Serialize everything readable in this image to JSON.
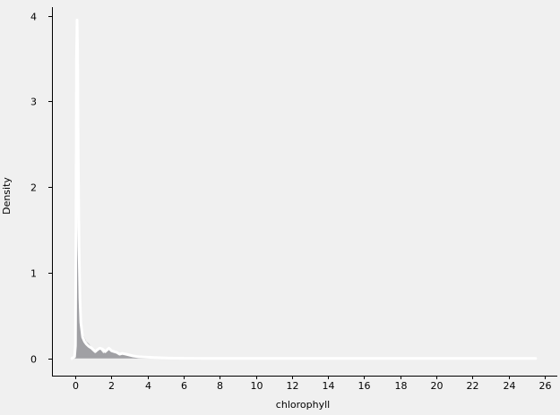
{
  "chart_data": {
    "type": "area",
    "title": "",
    "xlabel": "chlorophyll",
    "ylabel": "Density",
    "xlim": [
      -1.3,
      26.7
    ],
    "ylim": [
      -0.2,
      4.1
    ],
    "x_ticks": [
      0,
      2,
      4,
      6,
      8,
      10,
      12,
      14,
      16,
      18,
      20,
      22,
      24,
      26
    ],
    "y_ticks": [
      0,
      1,
      2,
      3,
      4
    ],
    "grid": false,
    "background": "#f0f0f0",
    "series": [
      {
        "role": "area",
        "color": "#a0a0a4",
        "x": [
          -0.1,
          0.0,
          0.05,
          0.1,
          0.13,
          0.16,
          0.2,
          0.25,
          0.3,
          0.4,
          0.5,
          0.6,
          0.75,
          0.9,
          1.0,
          1.1,
          1.25,
          1.4,
          1.55,
          1.7,
          1.85,
          1.95,
          2.1,
          2.25,
          2.4,
          2.55,
          2.7,
          2.85,
          3.0,
          3.1,
          3.2,
          3.4,
          3.7,
          4.0,
          4.5,
          5.0,
          5.3
        ],
        "y": [
          0,
          0.05,
          0.4,
          1.3,
          2.05,
          1.75,
          1.1,
          0.7,
          0.48,
          0.3,
          0.24,
          0.2,
          0.17,
          0.13,
          0.11,
          0.09,
          0.12,
          0.1,
          0.06,
          0.1,
          0.12,
          0.1,
          0.09,
          0.07,
          0.06,
          0.07,
          0.06,
          0.05,
          0.05,
          0.04,
          0.03,
          0.025,
          0.02,
          0.015,
          0.01,
          0.005,
          0
        ]
      },
      {
        "role": "line",
        "color": "#ffffff",
        "x": [
          -0.2,
          -0.05,
          0.0,
          0.03,
          0.06,
          0.09,
          0.12,
          0.15,
          0.2,
          0.25,
          0.3,
          0.4,
          0.5,
          0.6,
          0.75,
          0.9,
          1.0,
          1.1,
          1.2,
          1.35,
          1.5,
          1.65,
          1.75,
          1.85,
          2.0,
          2.15,
          2.3,
          2.45,
          2.6,
          2.8,
          3.0,
          3.2,
          3.5,
          4.0,
          4.5,
          5.0,
          5.5,
          6.0,
          8.0,
          10.0,
          12.0,
          15.0,
          18.0,
          21.0,
          24.0,
          25.5
        ],
        "y": [
          0,
          0.02,
          0.15,
          1.5,
          3.5,
          3.95,
          3.6,
          2.5,
          1.3,
          0.7,
          0.42,
          0.25,
          0.2,
          0.17,
          0.14,
          0.12,
          0.1,
          0.08,
          0.1,
          0.12,
          0.11,
          0.08,
          0.1,
          0.12,
          0.09,
          0.08,
          0.07,
          0.05,
          0.06,
          0.05,
          0.04,
          0.03,
          0.02,
          0.015,
          0.01,
          0.006,
          0.004,
          0.002,
          0.001,
          0.001,
          0,
          0,
          0,
          0,
          0,
          0
        ]
      }
    ]
  }
}
